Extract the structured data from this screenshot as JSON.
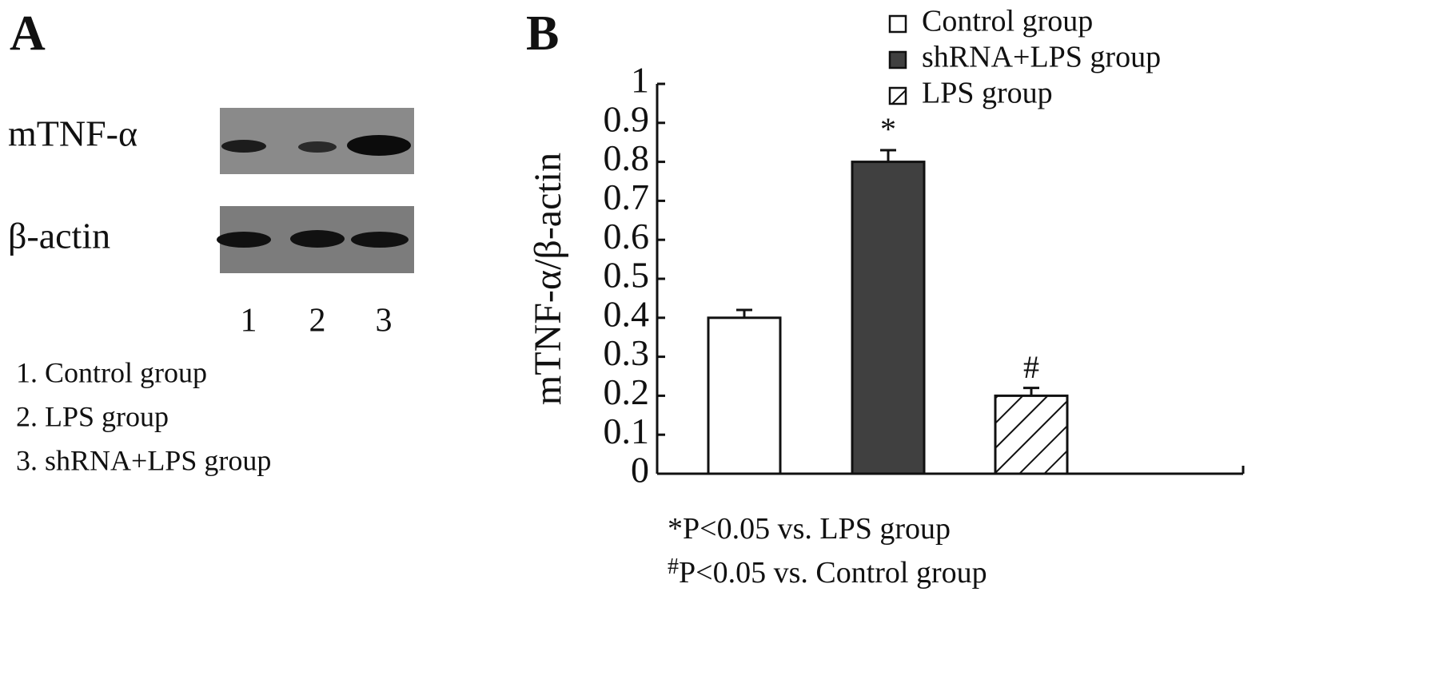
{
  "panel_a": {
    "label": "A",
    "rows": [
      "mTNF-α",
      "β-actin"
    ],
    "lanes": [
      "1",
      "2",
      "3"
    ],
    "legend": [
      "1. Control group",
      "2. LPS group",
      "3. shRNA+LPS group"
    ]
  },
  "chart_data": {
    "type": "bar",
    "panel_label": "B",
    "y_label": "mTNF-α/β-actin",
    "categories": [
      null,
      null,
      null
    ],
    "series": [
      {
        "name": "Control group",
        "color": "#ffffff",
        "values": [
          0.4,
          null,
          null
        ],
        "errors": [
          0.02,
          null,
          null
        ]
      },
      {
        "name": "shRNA+LPS group",
        "color": "#404040",
        "values": [
          null,
          0.8,
          null
        ],
        "errors": [
          null,
          0.03,
          null
        ],
        "annotation": "*"
      },
      {
        "name": "LPS group",
        "color": "#ffffff",
        "pattern": "hatch",
        "values": [
          null,
          null,
          0.2
        ],
        "errors": [
          null,
          null,
          0.02
        ],
        "annotation": "#"
      }
    ],
    "ylim": [
      0,
      1
    ],
    "yticks": [
      0,
      0.1,
      0.2,
      0.3,
      0.4,
      0.5,
      0.6,
      0.7,
      0.8,
      0.9,
      1
    ],
    "footnotes": [
      {
        "symbol": "*",
        "text": "P<0.05 vs. LPS group"
      },
      {
        "symbol": "#",
        "text": "P<0.05 vs. Control group"
      }
    ]
  }
}
